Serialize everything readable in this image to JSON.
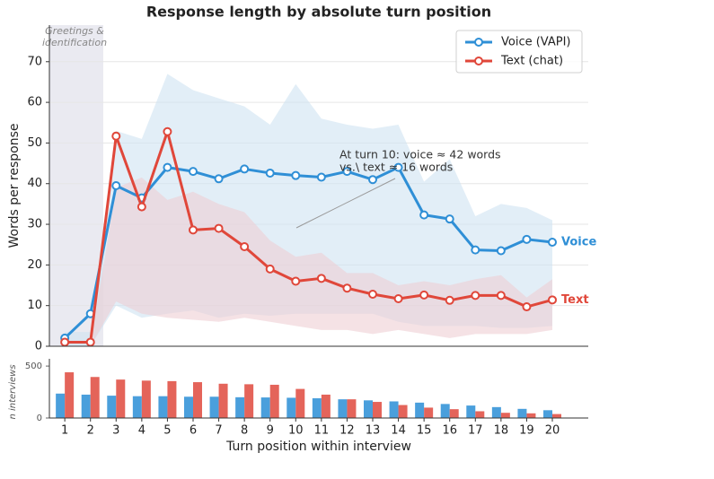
{
  "chart_data": [
    {
      "type": "line",
      "title": "Response length by absolute turn position",
      "y_label": "Words per response",
      "x": [
        1,
        2,
        3,
        4,
        5,
        6,
        7,
        8,
        9,
        10,
        11,
        12,
        13,
        14,
        15,
        16,
        17,
        18,
        19,
        20
      ],
      "xlim": [
        0.4,
        21.4
      ],
      "ylim": [
        0,
        79
      ],
      "yticks": [
        0,
        10,
        20,
        30,
        40,
        50,
        60,
        70
      ],
      "grid": true,
      "legend": "upper right",
      "highlight": {
        "range": [
          0.4,
          2.5
        ],
        "label": [
          "Greetings &",
          "identification"
        ]
      },
      "annotation": [
        "At turn 10: voice ≈ 42 words",
        "vs.\\ text ≈ 16 words"
      ],
      "series": [
        {
          "name": "Voice (VAPI)",
          "end_label": "Voice",
          "color": "#2f8fd6",
          "band_color": "#cfe3f2",
          "values": [
            2,
            8,
            39.5,
            36.5,
            44,
            43,
            41.2,
            43.6,
            42.6,
            42,
            41.6,
            43,
            41,
            44,
            32.3,
            31.3,
            23.7,
            23.5,
            26.3,
            25.6
          ],
          "band_upper": [
            3.5,
            3.5,
            53,
            51,
            67,
            63,
            61,
            59,
            54.5,
            64.5,
            56,
            54.5,
            53.5,
            54.5,
            40.5,
            46,
            32,
            35,
            34,
            31
          ],
          "band_lower": [
            0,
            0,
            10,
            7,
            8,
            8.8,
            7,
            8,
            7.5,
            8,
            8,
            8,
            8,
            6,
            5,
            5,
            5,
            4.5,
            4.5,
            5
          ]
        },
        {
          "name": "Text (chat)",
          "end_label": "Text",
          "color": "#e0473a",
          "band_color": "#efcfd3",
          "values": [
            1,
            1,
            51.7,
            34.3,
            52.8,
            28.6,
            29,
            24.5,
            19,
            16,
            16.7,
            14.3,
            12.8,
            11.7,
            12.6,
            11.3,
            12.5,
            12.5,
            9.7,
            11.4
          ],
          "band_upper": [
            0,
            0,
            39,
            41.5,
            36,
            38,
            35,
            33,
            26,
            22,
            23,
            18,
            18,
            15,
            16,
            15,
            16.5,
            17.5,
            12,
            16.5
          ],
          "band_lower": [
            0,
            0,
            11,
            8,
            7,
            6.5,
            6,
            7,
            6,
            5,
            4,
            4,
            3,
            4,
            3,
            2,
            3,
            3,
            3,
            4
          ]
        }
      ]
    },
    {
      "type": "bar",
      "x_label": "Turn position within interview",
      "y_label": "n interviews",
      "x": [
        1,
        2,
        3,
        4,
        5,
        6,
        7,
        8,
        9,
        10,
        11,
        12,
        13,
        14,
        15,
        16,
        17,
        18,
        19,
        20
      ],
      "xticks": [
        1,
        2,
        3,
        4,
        5,
        6,
        7,
        8,
        9,
        10,
        11,
        12,
        13,
        14,
        15,
        16,
        17,
        18,
        19,
        20
      ],
      "xlim": [
        0.4,
        21.4
      ],
      "ylim": [
        0,
        570
      ],
      "yticks": [
        0,
        500
      ],
      "series": [
        {
          "color": "#4a9fdc",
          "values": [
            235,
            225,
            215,
            210,
            210,
            205,
            205,
            200,
            198,
            195,
            190,
            180,
            170,
            160,
            148,
            135,
            120,
            105,
            88,
            75
          ]
        },
        {
          "color": "#e4645a",
          "values": [
            440,
            395,
            370,
            360,
            355,
            345,
            330,
            325,
            320,
            280,
            225,
            180,
            155,
            125,
            100,
            85,
            65,
            50,
            45,
            38
          ]
        }
      ]
    }
  ]
}
